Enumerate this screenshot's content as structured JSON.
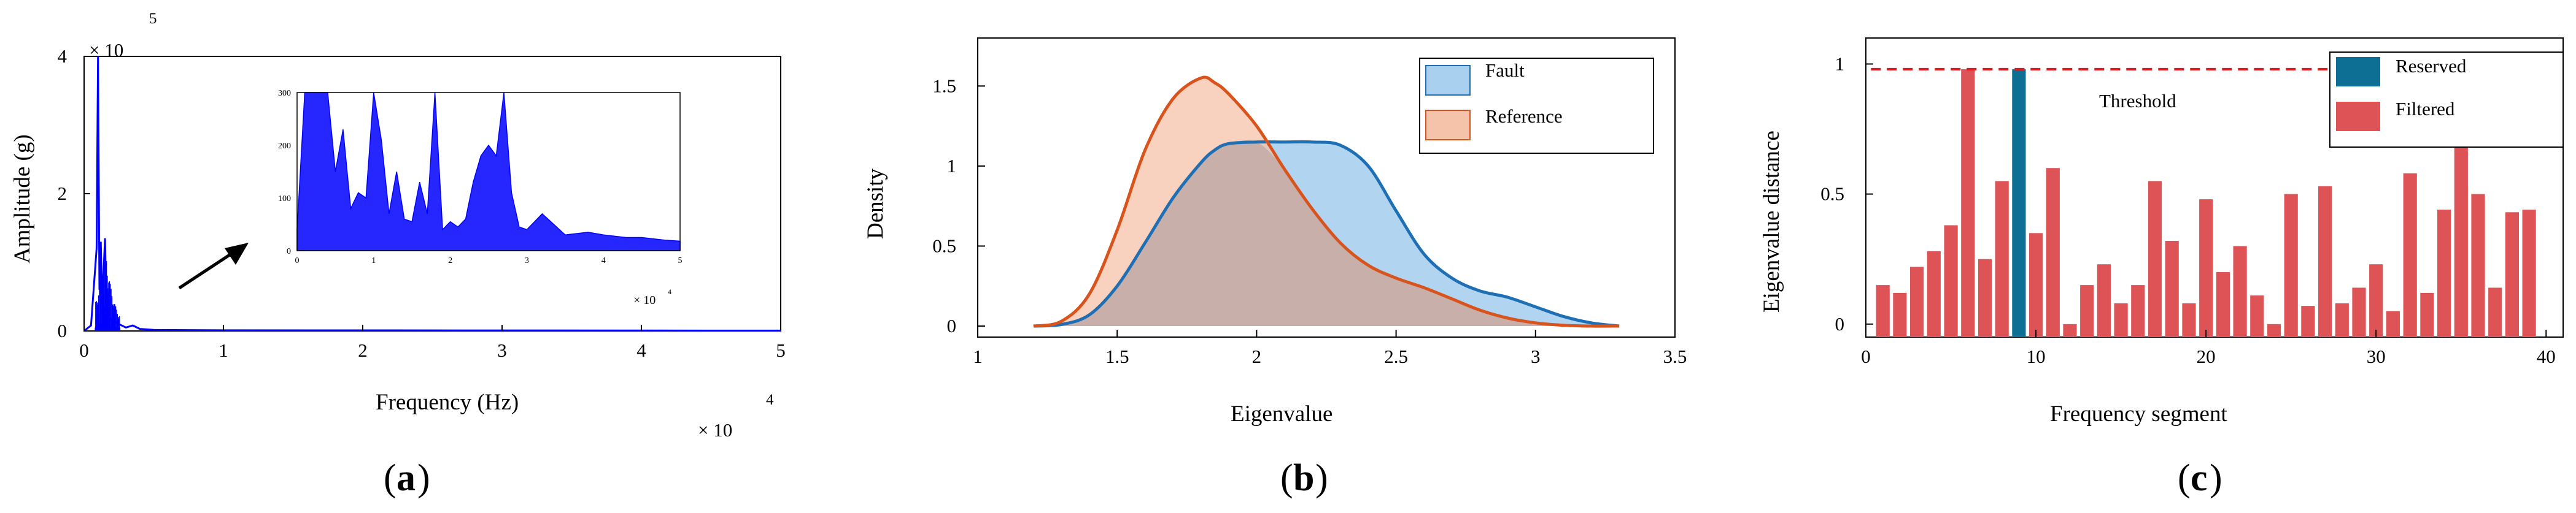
{
  "panels": {
    "a": {
      "label_prefix": "(",
      "label_letter": "a",
      "label_suffix": ")",
      "xlabel": "Frequency (Hz)",
      "ylabel": "Amplitude (g)",
      "y_exponent_base": "× 10",
      "y_exponent_power": "5",
      "x_exponent_base": "× 10",
      "x_exponent_power": "4",
      "xticks": [
        "0",
        "1",
        "2",
        "3",
        "4",
        "5"
      ],
      "yticks": [
        "0",
        "2",
        "4"
      ],
      "inset": {
        "yticks": [
          "0",
          "100",
          "200",
          "300"
        ],
        "xticks": [
          "0",
          "1",
          "2",
          "3",
          "4",
          "5"
        ],
        "x_exponent_base": "× 10",
        "x_exponent_power": "4"
      }
    },
    "b": {
      "label_prefix": "(",
      "label_letter": "b",
      "label_suffix": ")",
      "xlabel": "Eigenvalue",
      "ylabel": "Density",
      "xticks": [
        "1",
        "1.5",
        "2",
        "2.5",
        "3",
        "3.5"
      ],
      "yticks": [
        "0",
        "0.5",
        "1",
        "1.5"
      ],
      "legend": [
        "Fault",
        "Reference"
      ]
    },
    "c": {
      "label_prefix": "(",
      "label_letter": "c",
      "label_suffix": ")",
      "xlabel": "Frequency segment",
      "ylabel": "Eigenvalue distance",
      "xticks": [
        "0",
        "10",
        "20",
        "30",
        "40"
      ],
      "yticks": [
        "0",
        "0.5",
        "1"
      ],
      "legend": [
        "Reserved",
        "Filtered"
      ],
      "threshold_label": "Threshold"
    }
  },
  "colors": {
    "spectrum": "#0000ff",
    "fault_line": "#1f6fb4",
    "fault_fill": "#a9d0ee",
    "reference_line": "#d9541c",
    "reference_fill": "#f5c2aa",
    "overlap_fill": "#c4aca8",
    "reserved": "#0e6f94",
    "filtered": "#de5456",
    "threshold": "#e31a1c"
  },
  "chart_data": [
    {
      "type": "line",
      "title": "",
      "xlabel": "Frequency (Hz)",
      "ylabel": "Amplitude (g)",
      "x_scale": "× 10^4",
      "y_scale": "× 10^5",
      "xlim": [
        0,
        50000
      ],
      "ylim": [
        0,
        400000
      ],
      "series": [
        {
          "x": [
            0,
            500,
            900,
            1000,
            1100,
            1200,
            1300,
            1500,
            1600,
            1800,
            2000,
            2500,
            3000,
            3500,
            4000,
            5000,
            10000,
            20000,
            30000,
            40000,
            50000
          ],
          "values": [
            0,
            8000,
            120000,
            400000,
            60000,
            130000,
            40000,
            135000,
            30000,
            20000,
            15000,
            10000,
            5000,
            8000,
            3000,
            1500,
            1000,
            900,
            800,
            600,
            500
          ]
        }
      ],
      "inset": {
        "xlim": [
          0,
          50000
        ],
        "ylim": [
          0,
          300
        ],
        "series": [
          {
            "x": [
              0,
              1000,
              2000,
              3000,
              4000,
              5000,
              6000,
              7000,
              8000,
              9000,
              10000,
              11000,
              12000,
              13000,
              14000,
              15000,
              16000,
              17000,
              18000,
              19000,
              20000,
              21000,
              22000,
              23000,
              24000,
              25000,
              26000,
              27000,
              28000,
              29000,
              30000,
              32000,
              35000,
              38000,
              40000,
              43000,
              45000,
              48000,
              50000
            ],
            "values": [
              40,
              300,
              300,
              300,
              300,
              150,
              230,
              80,
              110,
              100,
              300,
              210,
              70,
              150,
              60,
              55,
              130,
              70,
              300,
              40,
              55,
              45,
              60,
              130,
              180,
              200,
              180,
              300,
              110,
              45,
              40,
              70,
              30,
              35,
              30,
              25,
              25,
              20,
              18
            ]
          }
        ]
      }
    },
    {
      "type": "area",
      "title": "",
      "xlabel": "Eigenvalue",
      "ylabel": "Density",
      "xlim": [
        1,
        3.5
      ],
      "ylim": [
        0,
        1.8
      ],
      "legend_position": "top-right",
      "x": [
        1.2,
        1.3,
        1.4,
        1.5,
        1.6,
        1.7,
        1.8,
        1.85,
        1.9,
        2.0,
        2.1,
        2.2,
        2.3,
        2.4,
        2.5,
        2.6,
        2.7,
        2.8,
        2.9,
        3.0,
        3.1,
        3.2,
        3.3
      ],
      "series": [
        {
          "name": "Fault",
          "values": [
            0,
            0.01,
            0.07,
            0.25,
            0.52,
            0.8,
            1.02,
            1.1,
            1.14,
            1.15,
            1.15,
            1.15,
            1.13,
            1.0,
            0.72,
            0.45,
            0.3,
            0.22,
            0.18,
            0.12,
            0.06,
            0.02,
            0
          ]
        },
        {
          "name": "Reference",
          "values": [
            0,
            0.03,
            0.2,
            0.6,
            1.1,
            1.42,
            1.55,
            1.52,
            1.45,
            1.25,
            0.98,
            0.73,
            0.52,
            0.38,
            0.3,
            0.24,
            0.17,
            0.1,
            0.05,
            0.02,
            0.005,
            0,
            0
          ]
        }
      ]
    },
    {
      "type": "bar",
      "title": "",
      "xlabel": "Frequency segment",
      "ylabel": "Eigenvalue distance",
      "xlim": [
        0,
        41
      ],
      "ylim": [
        -0.05,
        1.1
      ],
      "legend_position": "top-right",
      "threshold": 0.98,
      "categories": [
        1,
        2,
        3,
        4,
        5,
        6,
        7,
        8,
        9,
        10,
        11,
        12,
        13,
        14,
        15,
        16,
        17,
        18,
        19,
        20,
        21,
        22,
        23,
        24,
        25,
        26,
        27,
        28,
        29,
        30,
        31,
        32,
        33,
        34,
        35,
        36,
        37,
        38,
        39
      ],
      "series": [
        {
          "name": "Filtered",
          "values": [
            0.15,
            0.12,
            0.22,
            0.28,
            0.38,
            0.98,
            0.25,
            0.55,
            null,
            0.35,
            0.6,
            0.0,
            0.15,
            0.23,
            0.08,
            0.15,
            0.55,
            0.32,
            0.08,
            0.48,
            0.2,
            0.3,
            0.11,
            0.0,
            0.5,
            0.07,
            0.53,
            0.08,
            0.14,
            0.23,
            0.05,
            0.58,
            0.12,
            0.44,
            0.76,
            0.5,
            0.14,
            0.43,
            0.44
          ]
        },
        {
          "name": "Reserved",
          "values": [
            null,
            null,
            null,
            null,
            null,
            null,
            null,
            null,
            0.98,
            null,
            null,
            null,
            null,
            null,
            null,
            null,
            null,
            null,
            null,
            null,
            null,
            null,
            null,
            null,
            null,
            null,
            null,
            null,
            null,
            null,
            null,
            null,
            null,
            null,
            null,
            null,
            null,
            null,
            null
          ]
        }
      ]
    }
  ]
}
